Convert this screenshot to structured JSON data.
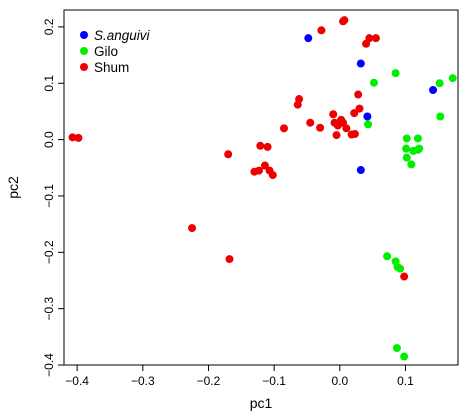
{
  "chart_data": {
    "type": "scatter",
    "xlabel": "pc1",
    "ylabel": "pc2",
    "xlim": [
      -0.42,
      0.18
    ],
    "ylim": [
      -0.4,
      0.23
    ],
    "x_ticks": [
      -0.4,
      -0.3,
      -0.2,
      -0.1,
      0.0,
      0.1
    ],
    "x_tick_labels": [
      "−0.4",
      "−0.3",
      "−0.2",
      "−0.1",
      "0.0",
      "0.1"
    ],
    "y_ticks": [
      -0.4,
      -0.3,
      -0.2,
      -0.1,
      0.0,
      0.1,
      0.2
    ],
    "y_tick_labels": [
      "−0.4",
      "−0.3",
      "−0.2",
      "−0.1",
      "0.0",
      "0.1",
      "0.2"
    ],
    "grid": false,
    "legend_position": "top-left",
    "series": [
      {
        "name": "S.anguivi",
        "italic": true,
        "color": "#0000ff",
        "points": [
          [
            -0.048,
            0.18
          ],
          [
            0.032,
            0.135
          ],
          [
            0.042,
            0.041
          ],
          [
            0.032,
            -0.054
          ],
          [
            0.142,
            0.088
          ]
        ]
      },
      {
        "name": "Gilo",
        "italic": false,
        "color": "#00ee00",
        "points": [
          [
            0.052,
            0.101
          ],
          [
            0.043,
            0.027
          ],
          [
            0.085,
            0.118
          ],
          [
            0.152,
            0.1
          ],
          [
            0.172,
            0.109
          ],
          [
            0.153,
            0.041
          ],
          [
            0.102,
            0.002
          ],
          [
            0.119,
            0.002
          ],
          [
            0.101,
            -0.016
          ],
          [
            0.112,
            -0.02
          ],
          [
            0.121,
            -0.016
          ],
          [
            0.102,
            -0.032
          ],
          [
            0.109,
            -0.044
          ],
          [
            0.119,
            -0.018
          ],
          [
            0.072,
            -0.207
          ],
          [
            0.085,
            -0.216
          ],
          [
            0.088,
            -0.226
          ],
          [
            0.092,
            -0.229
          ],
          [
            0.087,
            -0.37
          ],
          [
            0.098,
            -0.385
          ]
        ]
      },
      {
        "name": "Shum",
        "italic": false,
        "color": "#ee0000",
        "points": [
          [
            -0.407,
            0.004
          ],
          [
            -0.398,
            0.003
          ],
          [
            -0.225,
            -0.157
          ],
          [
            -0.168,
            -0.212
          ],
          [
            -0.17,
            -0.026
          ],
          [
            -0.121,
            -0.011
          ],
          [
            -0.11,
            -0.013
          ],
          [
            -0.123,
            -0.055
          ],
          [
            -0.114,
            -0.046
          ],
          [
            -0.107,
            -0.055
          ],
          [
            -0.102,
            -0.063
          ],
          [
            -0.13,
            -0.057
          ],
          [
            -0.085,
            0.02
          ],
          [
            -0.062,
            0.072
          ],
          [
            -0.064,
            0.062
          ],
          [
            -0.045,
            0.03
          ],
          [
            -0.03,
            0.021
          ],
          [
            -0.028,
            0.194
          ],
          [
            0.005,
            0.21
          ],
          [
            0.007,
            0.212
          ],
          [
            -0.01,
            0.045
          ],
          [
            -0.008,
            0.03
          ],
          [
            -0.003,
            0.025
          ],
          [
            0.002,
            0.035
          ],
          [
            0.005,
            0.03
          ],
          [
            0.01,
            0.02
          ],
          [
            -0.005,
            0.008
          ],
          [
            0.018,
            0.009
          ],
          [
            0.023,
            0.01
          ],
          [
            0.028,
            0.08
          ],
          [
            0.03,
            0.055
          ],
          [
            0.022,
            0.047
          ],
          [
            0.04,
            0.17
          ],
          [
            0.045,
            0.18
          ],
          [
            0.055,
            0.18
          ],
          [
            0.098,
            -0.243
          ]
        ]
      }
    ]
  }
}
